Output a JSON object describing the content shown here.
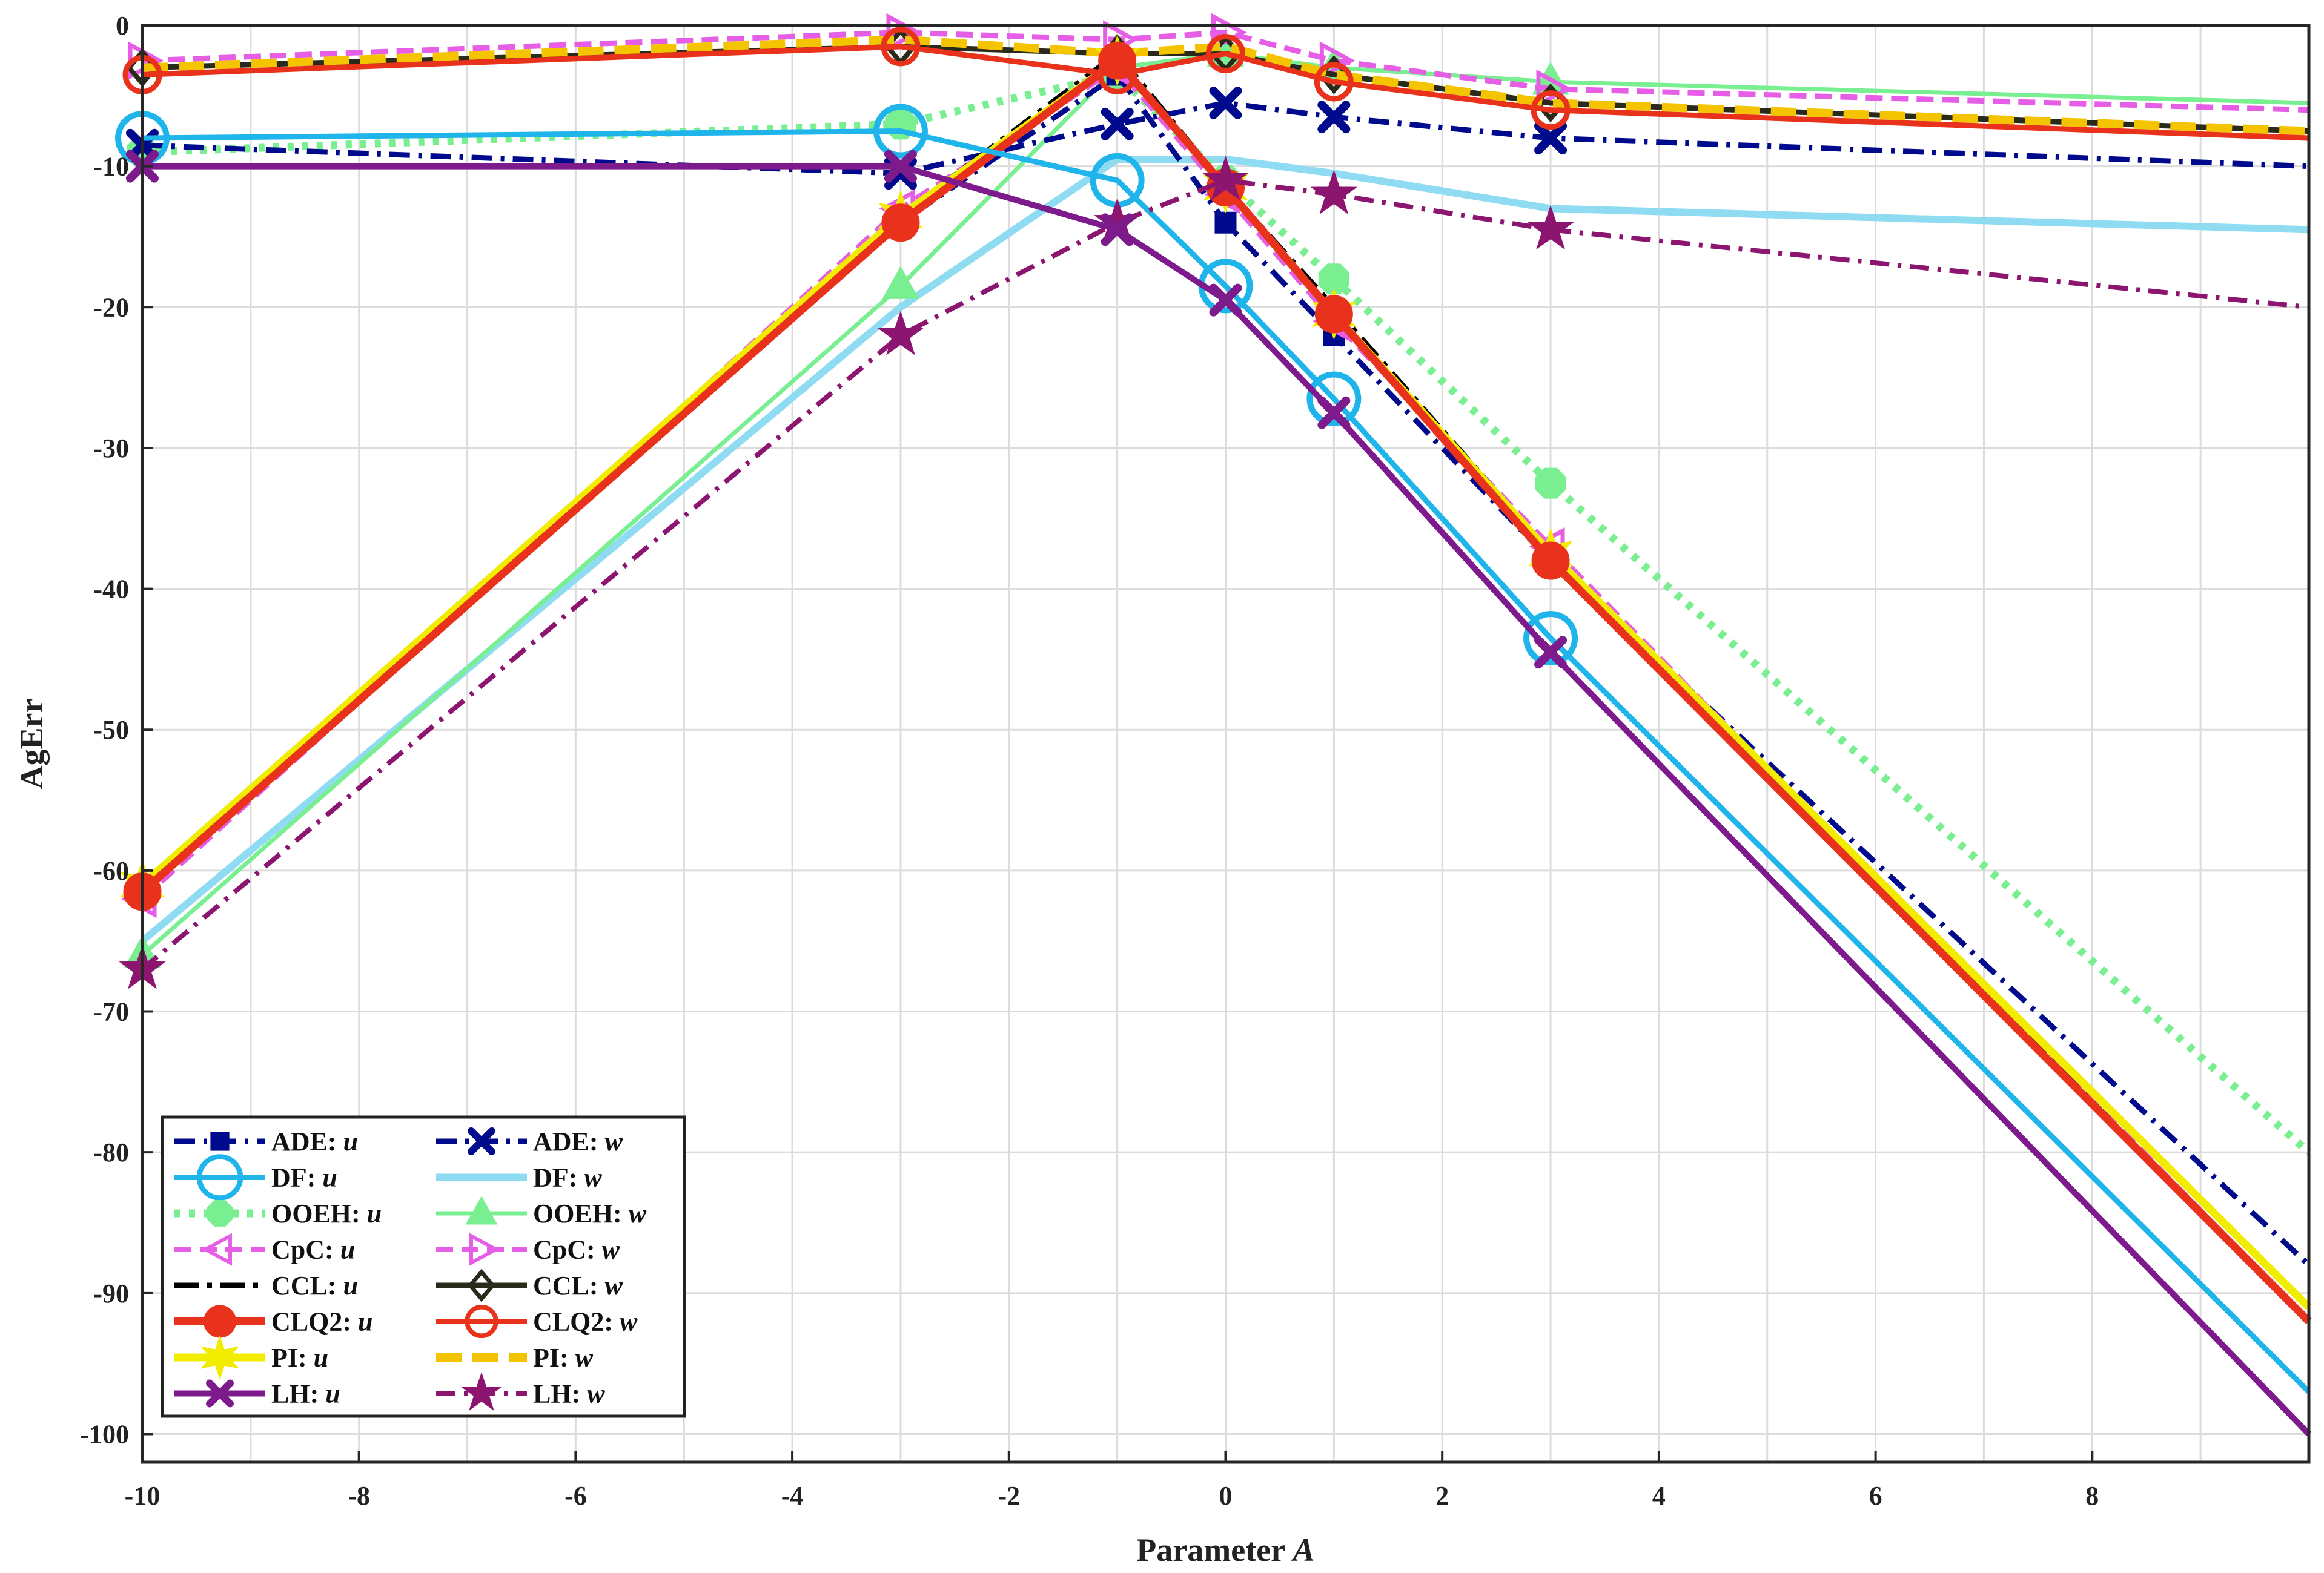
{
  "chart_data": {
    "type": "line",
    "title": "",
    "xlabel_text": "Parameter",
    "xlabel_var": "A",
    "ylabel": "AgErr",
    "xlim": [
      -10,
      10
    ],
    "ylim": [
      -102,
      0
    ],
    "x_ticks": [
      -10,
      -8,
      -6,
      -4,
      -2,
      0,
      2,
      4,
      6,
      8
    ],
    "y_ticks": [
      0,
      -10,
      -20,
      -30,
      -40,
      -50,
      -60,
      -70,
      -80,
      -90,
      -100
    ],
    "grid": true,
    "legend_position": "bottom-left",
    "x": [
      -10,
      -3,
      -1,
      0,
      1,
      3,
      10
    ],
    "series": [
      {
        "name": "ADE",
        "var": "u",
        "color": "#000a8c",
        "values": [
          -61.5,
          -14,
          -3.5,
          -14,
          -22,
          -38,
          -88
        ],
        "width": 9,
        "dash": "34,14,6,14",
        "marker": "square"
      },
      {
        "name": "ADE",
        "var": "w",
        "color": "#000a8c",
        "values": [
          -8.5,
          -10.5,
          -7,
          -5.5,
          -6.5,
          -8,
          -10
        ],
        "width": 9,
        "dash": "34,14,6,14",
        "marker": "x"
      },
      {
        "name": "DF",
        "var": "u",
        "color": "#1fb5ea",
        "values": [
          -8,
          -7.5,
          -11,
          -18.5,
          -26.5,
          -43.5,
          -97
        ],
        "width": 9,
        "dash": "",
        "marker": "circle-big"
      },
      {
        "name": "DF",
        "var": "w",
        "color": "#8fdcf2",
        "values": [
          -65,
          -20,
          -9.5,
          -9.5,
          -10.5,
          -13,
          -14.5
        ],
        "width": 12,
        "dash": "",
        "marker": "none"
      },
      {
        "name": "OOEH",
        "var": "u",
        "color": "#79ef92",
        "values": [
          -9,
          -7,
          -3.5,
          -11,
          -18,
          -32.5,
          -80
        ],
        "width": 13,
        "dash": "10,14",
        "marker": "octagon"
      },
      {
        "name": "OOEH",
        "var": "w",
        "color": "#79ef92",
        "values": [
          -66,
          -18.5,
          -3,
          -2,
          -3,
          -4,
          -5.5
        ],
        "width": 7,
        "dash": "",
        "marker": "triangle-up"
      },
      {
        "name": "CpC",
        "var": "u",
        "color": "#e55ee5",
        "values": [
          -62,
          -13,
          -3,
          -12,
          -21,
          -37,
          -92
        ],
        "width": 9,
        "dash": "28,14",
        "marker": "triangle-left"
      },
      {
        "name": "CpC",
        "var": "w",
        "color": "#e55ee5",
        "values": [
          -2.5,
          -0.5,
          -1,
          -0.5,
          -2.5,
          -4.5,
          -6
        ],
        "width": 9,
        "dash": "28,14",
        "marker": "triangle-right"
      },
      {
        "name": "CCL",
        "var": "u",
        "color": "#000000",
        "values": [
          -61,
          -13.5,
          -2,
          -11.5,
          -20,
          -37.5,
          -92
        ],
        "width": 9,
        "dash": "40,14,8,14",
        "marker": "none"
      },
      {
        "name": "CCL",
        "var": "w",
        "color": "#2a2a1a",
        "values": [
          -3,
          -1.5,
          -2,
          -2,
          -3.5,
          -5.5,
          -7.5
        ],
        "width": 9,
        "dash": "",
        "marker": "diamond"
      },
      {
        "name": "CLQ2",
        "var": "u",
        "color": "#e8321c",
        "values": [
          -61.5,
          -14,
          -2.5,
          -11.5,
          -20.5,
          -38,
          -92
        ],
        "width": 13,
        "dash": "",
        "marker": "circle-filled"
      },
      {
        "name": "CLQ2",
        "var": "w",
        "color": "#e8321c",
        "values": [
          -3.5,
          -1.5,
          -3.5,
          -2,
          -4,
          -6,
          -8
        ],
        "width": 9,
        "dash": "",
        "marker": "circle-open"
      },
      {
        "name": "PI",
        "var": "u",
        "color": "#f2ec00",
        "values": [
          -61,
          -13.5,
          -2.5,
          -11.5,
          -20.5,
          -37.5,
          -91
        ],
        "width": 13,
        "dash": "",
        "marker": "star6"
      },
      {
        "name": "PI",
        "var": "w",
        "color": "#f5c400",
        "values": [
          -3,
          -1,
          -2,
          -1.5,
          -3.5,
          -5.5,
          -7.5
        ],
        "width": 14,
        "dash": "42,18",
        "marker": "none"
      },
      {
        "name": "LH",
        "var": "u",
        "color": "#7d1a8c",
        "values": [
          -10,
          -10,
          -14.5,
          -19.5,
          -27.5,
          -44.5,
          -100
        ],
        "width": 10,
        "dash": "",
        "marker": "x"
      },
      {
        "name": "LH",
        "var": "w",
        "color": "#8c1570",
        "values": [
          -67,
          -22,
          -14,
          -11,
          -12,
          -14.5,
          -20
        ],
        "width": 8,
        "dash": "32,14,6,14",
        "marker": "star5"
      }
    ]
  }
}
